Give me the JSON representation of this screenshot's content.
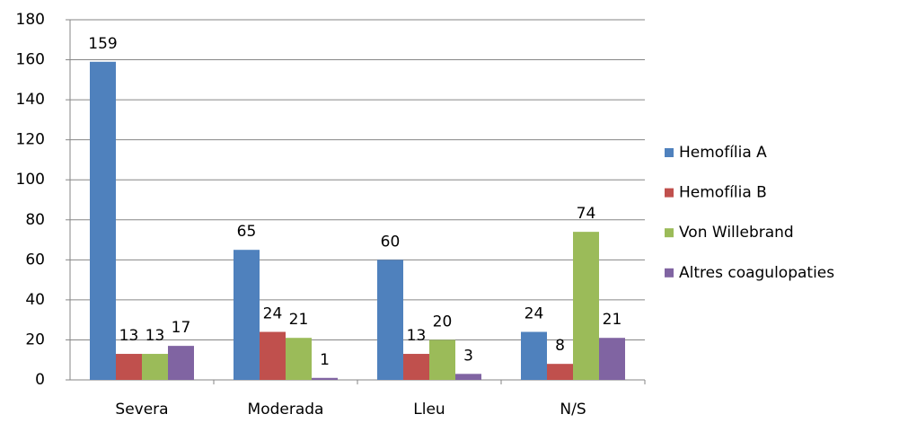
{
  "chart_data": {
    "type": "bar",
    "categories": [
      "Severa",
      "Moderada",
      "Lleu",
      "N/S"
    ],
    "series": [
      {
        "name": "Hemofília A",
        "color": "#4f81bd",
        "values": [
          159,
          65,
          60,
          24
        ]
      },
      {
        "name": "Hemofília B",
        "color": "#c0504d",
        "values": [
          13,
          24,
          13,
          8
        ]
      },
      {
        "name": "Von Willebrand",
        "color": "#9bbb59",
        "values": [
          13,
          21,
          20,
          74
        ]
      },
      {
        "name": "Altres coagulopaties",
        "color": "#8064a2",
        "values": [
          17,
          1,
          3,
          21
        ]
      }
    ],
    "ylim": [
      0,
      180
    ],
    "yticks": [
      0,
      20,
      40,
      60,
      80,
      100,
      120,
      140,
      160,
      180
    ],
    "grid": true,
    "legend": "right"
  }
}
